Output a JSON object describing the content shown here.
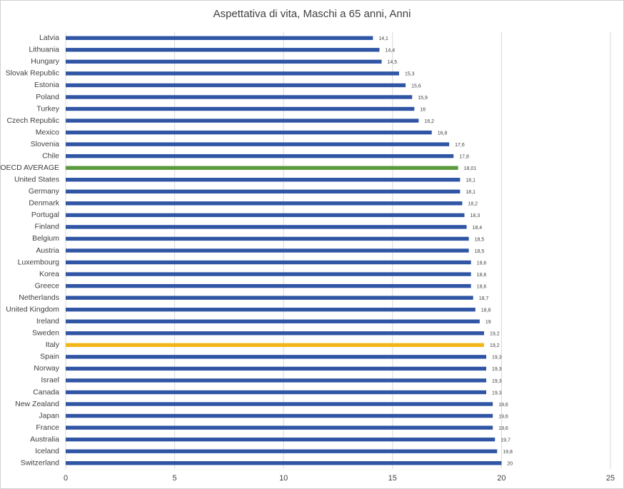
{
  "chart_data": {
    "type": "hbar",
    "title": "Aspettativa di vita, Maschi a 65 anni, Anni",
    "categories": [
      "Latvia",
      "Lithuania",
      "Hungary",
      "Slovak Republic",
      "Estonia",
      "Poland",
      "Turkey",
      "Czech Republic",
      "Mexico",
      "Slovenia",
      "Chile",
      "OECD AVERAGE",
      "United States",
      "Germany",
      "Denmark",
      "Portugal",
      "Finland",
      "Belgium",
      "Austria",
      "Luxembourg",
      "Korea",
      "Greece",
      "Netherlands",
      "United Kingdom",
      "Ireland",
      "Sweden",
      "Italy",
      "Spain",
      "Norway",
      "Israel",
      "Canada",
      "New Zealand",
      "Japan",
      "France",
      "Australia",
      "Iceland",
      "Switzerland"
    ],
    "values": [
      14.1,
      14.4,
      14.5,
      15.3,
      15.6,
      15.9,
      16,
      16.2,
      16.8,
      17.6,
      17.8,
      18.01,
      18.1,
      18.1,
      18.2,
      18.3,
      18.4,
      18.5,
      18.5,
      18.6,
      18.6,
      18.6,
      18.7,
      18.8,
      19,
      19.2,
      19.2,
      19.3,
      19.3,
      19.3,
      19.3,
      19.6,
      19.6,
      19.6,
      19.7,
      19.8,
      20
    ],
    "value_labels": [
      "14,1",
      "14,4",
      "14,5",
      "15,3",
      "15,6",
      "15,9",
      "16",
      "16,2",
      "16,8",
      "17,6",
      "17,8",
      "18,01",
      "18,1",
      "18,1",
      "18,2",
      "18,3",
      "18,4",
      "18,5",
      "18,5",
      "18,6",
      "18,6",
      "18,6",
      "18,7",
      "18,8",
      "19",
      "19,2",
      "19,2",
      "19,3",
      "19,3",
      "19,3",
      "19,3",
      "19,6",
      "19,6",
      "19,6",
      "19,7",
      "19,8",
      "20"
    ],
    "colors": [
      "#2f55a4",
      "#2f55a4",
      "#2f55a4",
      "#2f55a4",
      "#2f55a4",
      "#2f55a4",
      "#2f55a4",
      "#2f55a4",
      "#2f55a4",
      "#2f55a4",
      "#2f55a4",
      "#5b9a3c",
      "#2f55a4",
      "#2f55a4",
      "#2f55a4",
      "#2f55a4",
      "#2f55a4",
      "#2f55a4",
      "#2f55a4",
      "#2f55a4",
      "#2f55a4",
      "#2f55a4",
      "#2f55a4",
      "#2f55a4",
      "#2f55a4",
      "#2f55a4",
      "#f2b619",
      "#2f55a4",
      "#2f55a4",
      "#2f55a4",
      "#2f55a4",
      "#2f55a4",
      "#2f55a4",
      "#2f55a4",
      "#2f55a4",
      "#2f55a4",
      "#2f55a4"
    ],
    "xlim": [
      0,
      25
    ],
    "xticks": [
      0,
      5,
      10,
      15,
      20,
      25
    ],
    "grid": true
  }
}
